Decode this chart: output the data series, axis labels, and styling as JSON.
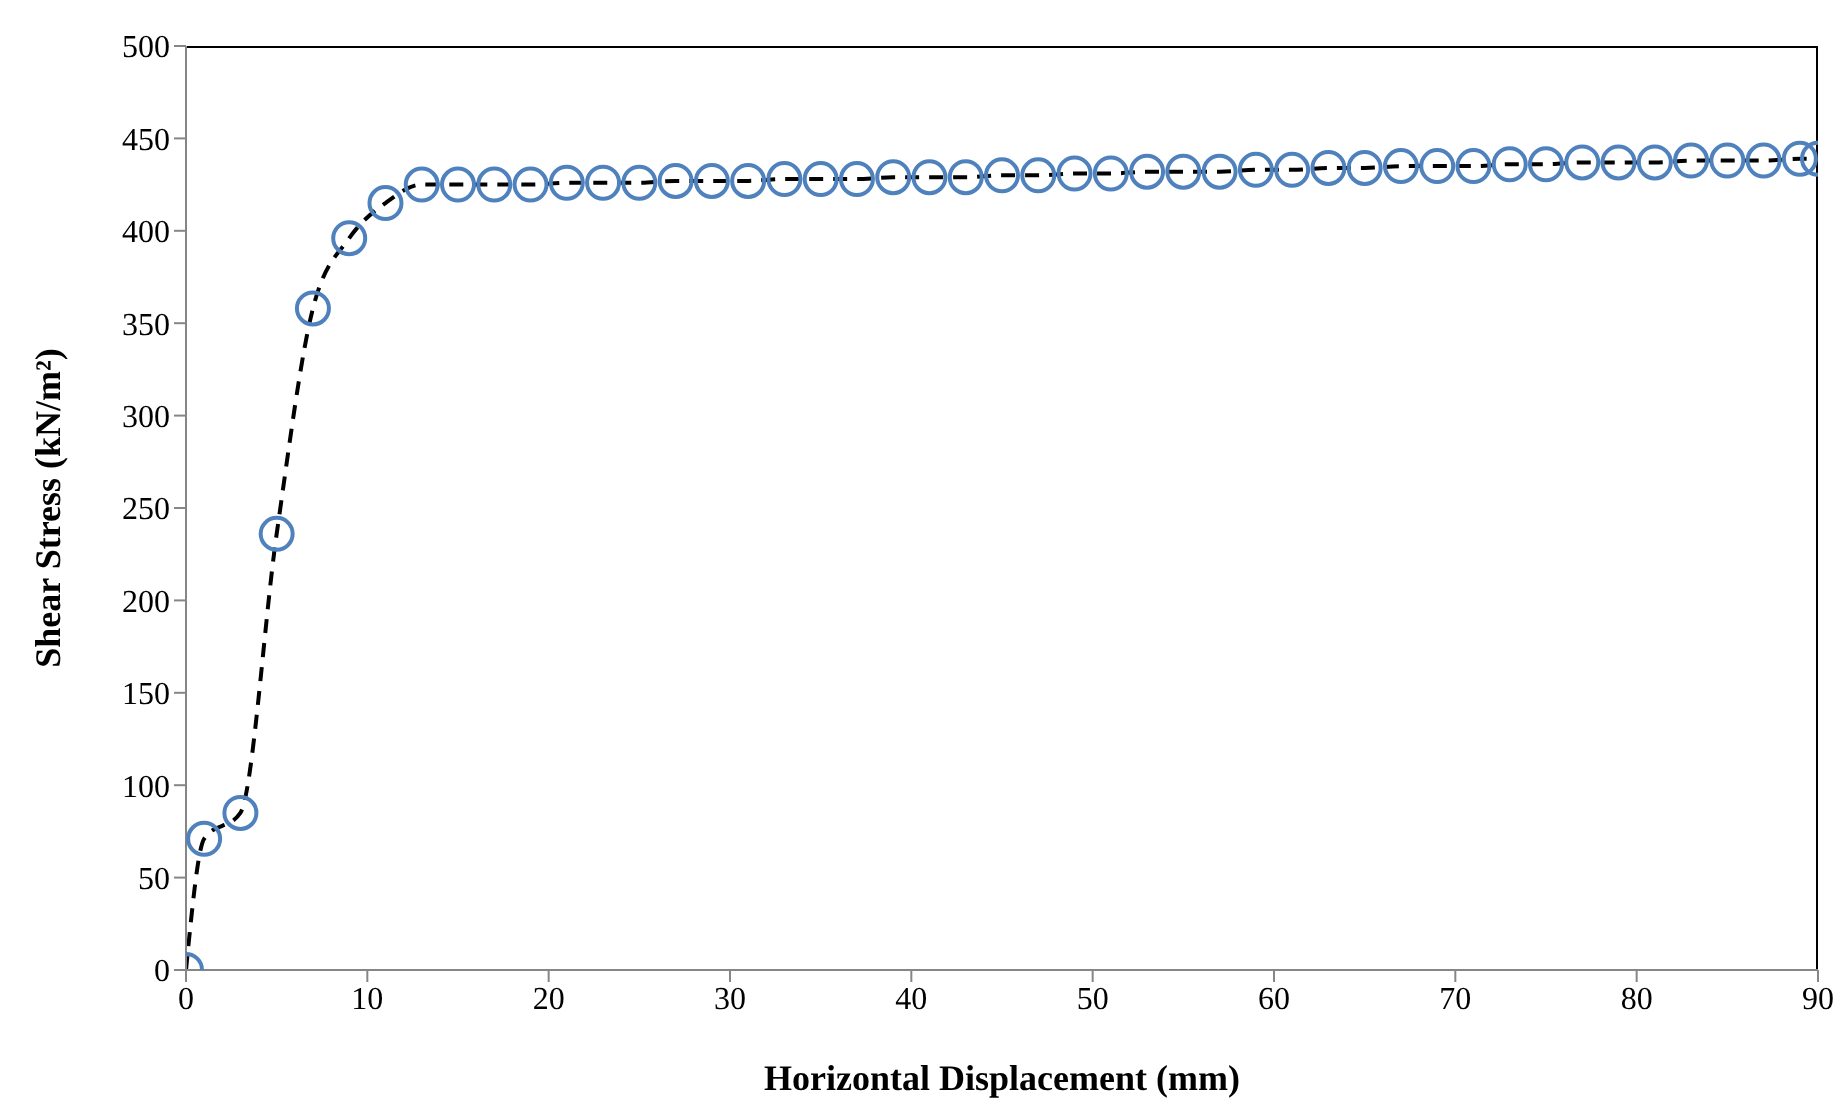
{
  "chart_data": {
    "type": "line",
    "xlabel": "Horizontal Displacement (mm)",
    "ylabel": "Shear Stress (kN/m²)",
    "x": [
      0,
      1,
      3,
      5,
      7,
      9,
      11,
      13,
      15,
      17,
      19,
      21,
      23,
      25,
      27,
      29,
      31,
      33,
      35,
      37,
      39,
      41,
      43,
      45,
      47,
      49,
      51,
      53,
      55,
      57,
      59,
      61,
      63,
      65,
      67,
      69,
      71,
      73,
      75,
      77,
      79,
      81,
      83,
      85,
      87,
      89,
      90
    ],
    "series": [
      {
        "color": "#4f81bd",
        "values": [
          0,
          71,
          85,
          236,
          358,
          396,
          415,
          425,
          425,
          425,
          425,
          426,
          426,
          426,
          427,
          427,
          427,
          428,
          428,
          428,
          429,
          429,
          429,
          430,
          430,
          431,
          431,
          432,
          432,
          432,
          433,
          433,
          434,
          434,
          435,
          435,
          435,
          436,
          436,
          437,
          437,
          437,
          438,
          438,
          438,
          439,
          439
        ]
      }
    ],
    "xlim": [
      0,
      90
    ],
    "xticks": [
      0,
      10,
      20,
      30,
      40,
      50,
      60,
      70,
      80,
      90
    ],
    "ylim": [
      0,
      500
    ],
    "yticks": [
      0,
      50,
      100,
      150,
      200,
      250,
      300,
      350,
      400,
      450,
      500
    ],
    "marker": "circle",
    "line_style": "dashed"
  }
}
